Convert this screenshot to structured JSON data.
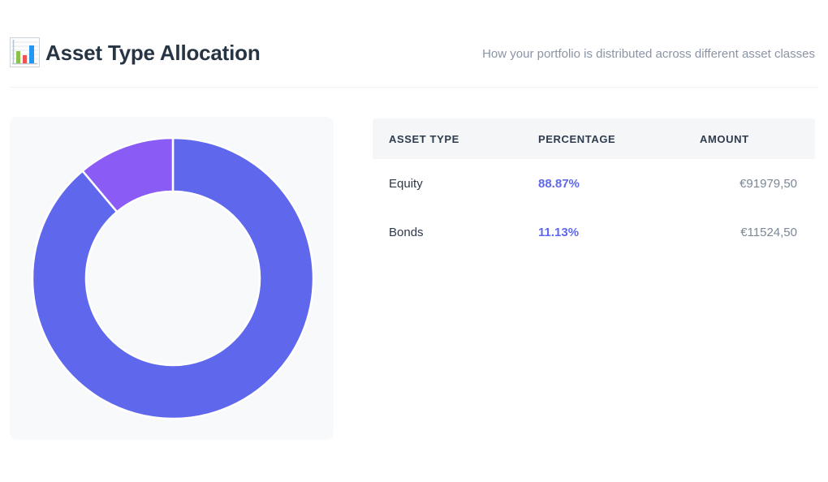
{
  "header": {
    "title": "Asset Type Allocation",
    "subtitle": "How your portfolio is distributed across different asset classes",
    "icon": "bar-chart-icon"
  },
  "allocation_table": {
    "columns": [
      {
        "label": "ASSET TYPE"
      },
      {
        "label": "PERCENTAGE"
      },
      {
        "label": "AMOUNT"
      }
    ],
    "rows": [
      {
        "asset_type": "Equity",
        "percentage": "88.87%",
        "amount": "€91979,50"
      },
      {
        "asset_type": "Bonds",
        "percentage": "11.13%",
        "amount": "€11524,50"
      }
    ]
  },
  "chart_data": {
    "type": "pie",
    "variant": "donut",
    "title": "Asset Type Allocation",
    "categories": [
      "Equity",
      "Bonds"
    ],
    "values": [
      88.87,
      11.13
    ],
    "colors": [
      "#5f68ec",
      "#8a5cf5"
    ],
    "start_angle_deg": 0,
    "direction": "clockwise",
    "legend": "none",
    "inner_radius_ratio": 0.62
  },
  "theme": {
    "accent_blue": "#5f68ec",
    "accent_purple": "#8a5cf5",
    "card_bg": "#f8f9fb",
    "table_header_bg": "#f4f6f8",
    "title_color": "#273444",
    "muted_text": "#8a94a6"
  }
}
